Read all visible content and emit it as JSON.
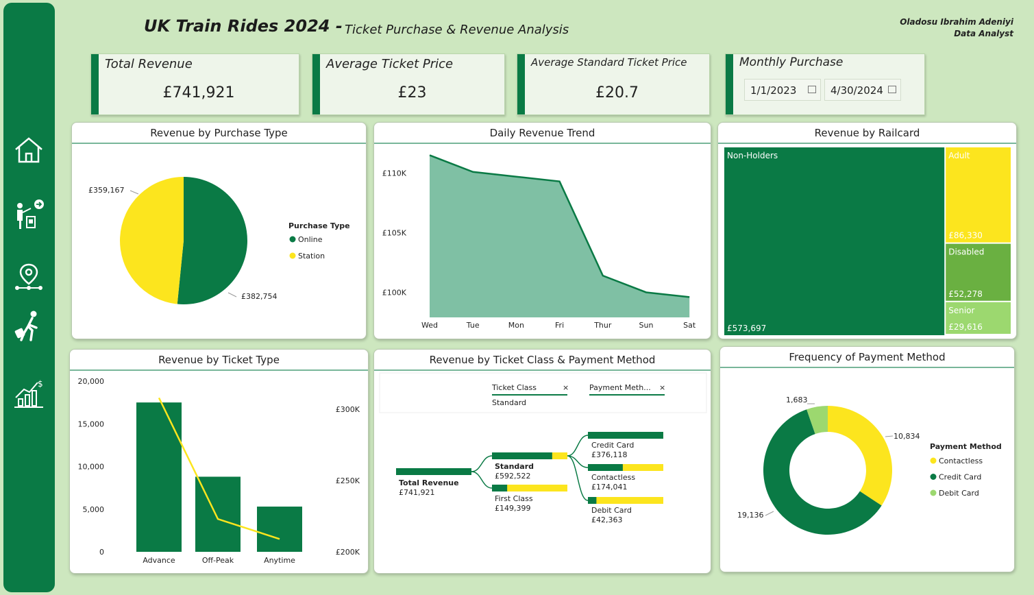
{
  "header": {
    "title": "UK Train Rides 2024 -",
    "subtitle": "Ticket Purchase & Revenue Analysis",
    "author_name": "Oladosu Ibrahim Adeniyi",
    "author_role": "Data Analyst"
  },
  "sidebar": {
    "icons": [
      "home-icon",
      "traveler-icon",
      "route-icon",
      "passenger-luggage-icon",
      "revenue-chart-icon"
    ]
  },
  "kpis": {
    "total_revenue": {
      "label": "Total Revenue",
      "value": "£741,921"
    },
    "avg_ticket_price": {
      "label": "Average Ticket Price",
      "value": "£23"
    },
    "avg_standard_price": {
      "label": "Average Standard Ticket Price",
      "value": "£20.7"
    },
    "monthly_purchase": {
      "label": "Monthly Purchase",
      "start_date": "1/1/2023",
      "end_date": "4/30/2024"
    }
  },
  "colors": {
    "green": "#0a7a45",
    "yellow": "#fce51e",
    "light_green": "#9cd86f",
    "mid_green": "#6ab041",
    "area_fill": "#7fc0a4",
    "sidebar": "#0a7a45"
  },
  "chart_data": [
    {
      "id": "purchase-type",
      "type": "pie",
      "title": "Revenue by Purchase Type",
      "legend_title": "Purchase Type",
      "slices": [
        {
          "name": "Online",
          "value": 382754,
          "label": "£382,754",
          "color": "#0a7a45"
        },
        {
          "name": "Station",
          "value": 359167,
          "label": "£359,167",
          "color": "#fce51e"
        }
      ]
    },
    {
      "id": "daily-trend",
      "type": "area",
      "title": "Daily Revenue Trend",
      "categories": [
        "Wed",
        "Tue",
        "Mon",
        "Fri",
        "Thur",
        "Sun",
        "Sat"
      ],
      "values": [
        111500,
        110100,
        109700,
        109300,
        101400,
        100000,
        99600
      ],
      "yticks": [
        {
          "value": 110000,
          "label": "£110K"
        },
        {
          "value": 105000,
          "label": "£105K"
        },
        {
          "value": 100000,
          "label": "£100K"
        }
      ],
      "ylim": [
        97900,
        112500
      ]
    },
    {
      "id": "railcard",
      "type": "treemap",
      "title": "Revenue by Railcard",
      "items": [
        {
          "name": "Non-Holders",
          "value": 573697,
          "label": "£573,697",
          "color": "#0a7a45"
        },
        {
          "name": "Adult",
          "value": 86330,
          "label": "£86,330",
          "color": "#fce51e"
        },
        {
          "name": "Disabled",
          "value": 52278,
          "label": "£52,278",
          "color": "#6ab041"
        },
        {
          "name": "Senior",
          "value": 29616,
          "label": "£29,616",
          "color": "#9cd86f"
        }
      ]
    },
    {
      "id": "ticket-type",
      "type": "bar",
      "title": "Revenue by Ticket Type",
      "categories": [
        "Advance",
        "Off-Peak",
        "Anytime"
      ],
      "values": [
        17500,
        8800,
        5300
      ],
      "line_values": [
        308000,
        223000,
        209000
      ],
      "yticks_left": [
        "20,000",
        "15,000",
        "10,000",
        "5,000",
        "0"
      ],
      "ylim_left": [
        0,
        20000
      ],
      "yticks_right": [
        {
          "value": 300000,
          "label": "£300K"
        },
        {
          "value": 250000,
          "label": "£250K"
        },
        {
          "value": 200000,
          "label": "£200K"
        }
      ],
      "ylim_right": [
        200000,
        300000
      ]
    },
    {
      "id": "decomposition",
      "type": "decomposition-tree",
      "title": "Revenue by Ticket Class & Payment Method",
      "header_ticket_class": "Ticket Class",
      "header_ticket_class_value": "Standard",
      "header_payment": "Payment Meth...",
      "root": {
        "name": "Total Revenue",
        "value": 741921,
        "label": "£741,921"
      },
      "level1": [
        {
          "name": "Standard",
          "value": 592522,
          "label": "£592,522"
        },
        {
          "name": "First Class",
          "value": 149399,
          "label": "£149,399"
        }
      ],
      "level2": [
        {
          "name": "Credit Card",
          "value": 376118,
          "label": "£376,118"
        },
        {
          "name": "Contactless",
          "value": 174041,
          "label": "£174,041"
        },
        {
          "name": "Debit Card",
          "value": 42363,
          "label": "£42,363"
        }
      ]
    },
    {
      "id": "payment-frequency",
      "type": "pie",
      "title": "Frequency of Payment Method",
      "legend_title": "Payment Method",
      "slices": [
        {
          "name": "Contactless",
          "value": 10834,
          "label": "10,834",
          "color": "#fce51e"
        },
        {
          "name": "Credit Card",
          "value": 19136,
          "label": "19,136",
          "color": "#0a7a45"
        },
        {
          "name": "Debit Card",
          "value": 1683,
          "label": "1,683",
          "color": "#9cd86f"
        }
      ]
    }
  ]
}
